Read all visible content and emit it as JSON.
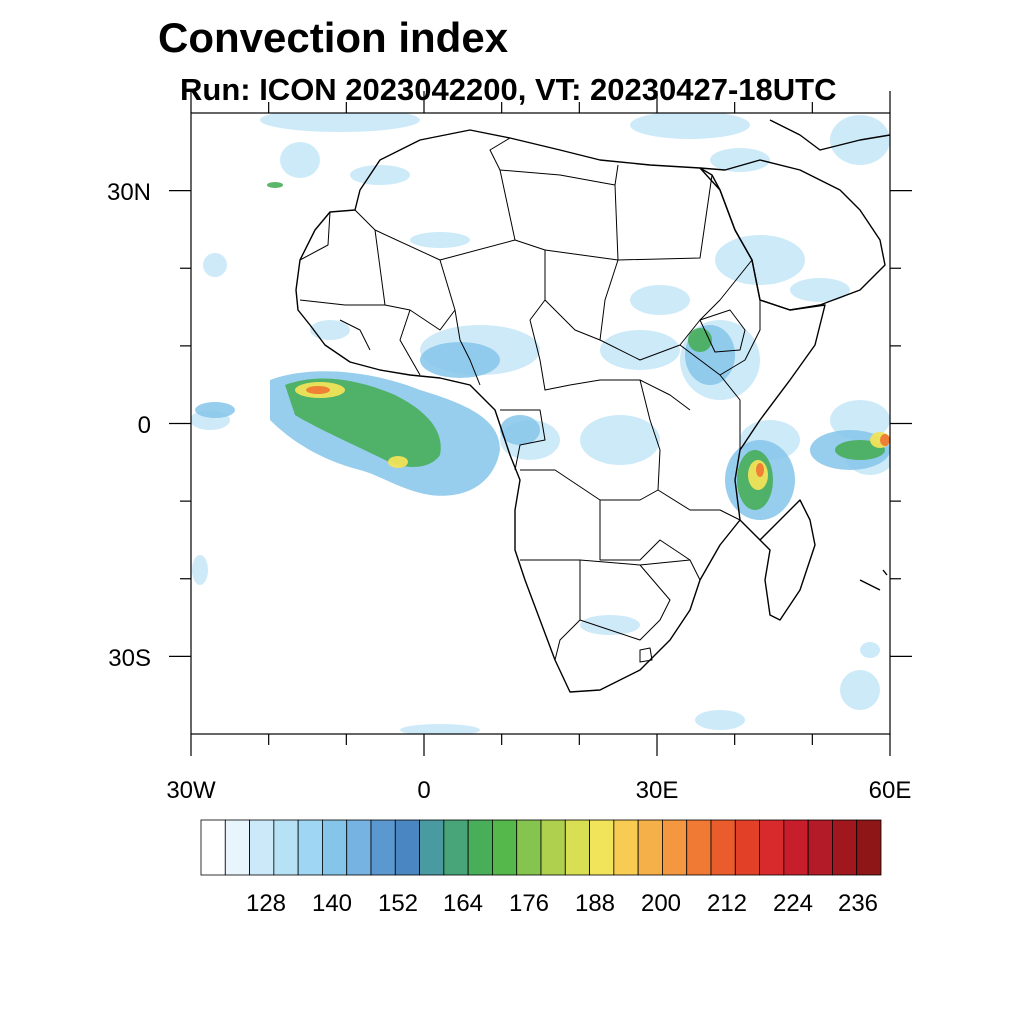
{
  "title": "Convection index",
  "subtitle": "Run: ICON 2023042200,  VT: 20230427-18UTC",
  "map": {
    "region": "Africa",
    "lon_range": [
      -30,
      60
    ],
    "lat_range": [
      -40,
      40
    ],
    "x_ticks": [
      {
        "value": -30,
        "label": "30W"
      },
      {
        "value": 0,
        "label": "0"
      },
      {
        "value": 30,
        "label": "30E"
      },
      {
        "value": 60,
        "label": "60E"
      }
    ],
    "y_ticks": [
      {
        "value": 30,
        "label": "30N"
      },
      {
        "value": 0,
        "label": "0"
      },
      {
        "value": -30,
        "label": "30S"
      }
    ]
  },
  "colorbar": {
    "colors": [
      "#ffffff",
      "#e8f5fc",
      "#cbe9f8",
      "#b7e2f6",
      "#9fd6f3",
      "#86c5ea",
      "#76b2e2",
      "#5b98d0",
      "#4a86c2",
      "#4a9aa2",
      "#48a57a",
      "#48ae5a",
      "#54b84a",
      "#86c450",
      "#aed04e",
      "#d9df52",
      "#f1e35a",
      "#f8cc52",
      "#f5b04a",
      "#f39740",
      "#f07a34",
      "#eb5c2c",
      "#e24128",
      "#d8292c",
      "#c81e2c",
      "#b31b28",
      "#a0181e",
      "#8e1616"
    ],
    "labels": [
      "128",
      "140",
      "152",
      "164",
      "176",
      "188",
      "200",
      "212",
      "224",
      "236"
    ]
  }
}
